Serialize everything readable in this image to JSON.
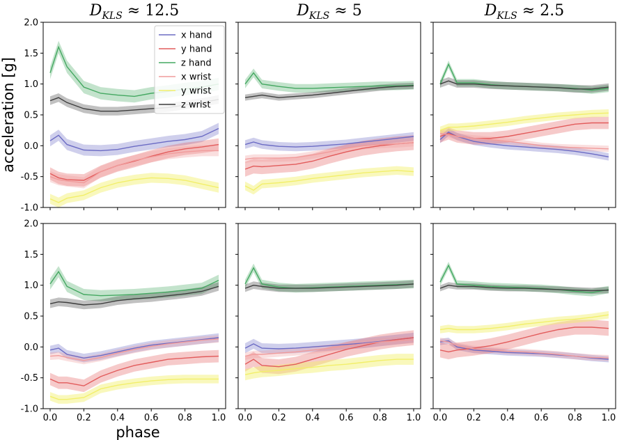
{
  "chart_data": {
    "type": "line",
    "layout": "2 rows x 3 columns of line panels with shaded variability bands",
    "xlabel": "phase",
    "ylabel": "acceleration [g]",
    "xlim": [
      0.0,
      1.0
    ],
    "ylim": [
      -1.0,
      2.0
    ],
    "xticks": [
      "0.0",
      "0.2",
      "0.4",
      "0.6",
      "0.8",
      "1.0"
    ],
    "yticks": [
      "-1.0",
      "-0.5",
      "0.0",
      "0.5",
      "1.0",
      "1.5",
      "2.0"
    ],
    "column_titles": [
      {
        "symbol": "D",
        "subscript": "KLS",
        "relation": "≈ 12.5"
      },
      {
        "symbol": "D",
        "subscript": "KLS",
        "relation": "≈ 5"
      },
      {
        "symbol": "D",
        "subscript": "KLS",
        "relation": "≈ 2.5"
      }
    ],
    "legend": [
      {
        "label": "x hand",
        "color": "#6b6bc4"
      },
      {
        "label": "y hand",
        "color": "#e25b5b"
      },
      {
        "label": "z hand",
        "color": "#44a861"
      },
      {
        "label": "x wrist",
        "color": "#f09b9b"
      },
      {
        "label": "y wrist",
        "color": "#f2ef6a"
      },
      {
        "label": "z wrist",
        "color": "#3d3d3d"
      }
    ],
    "x": [
      0.0,
      0.05,
      0.1,
      0.2,
      0.3,
      0.4,
      0.5,
      0.6,
      0.7,
      0.8,
      0.9,
      1.0
    ],
    "panels": [
      {
        "row": 0,
        "col": 0,
        "series": [
          {
            "name": "x hand",
            "values": [
              0.08,
              0.17,
              0.02,
              -0.07,
              -0.08,
              -0.06,
              -0.01,
              0.03,
              0.07,
              0.1,
              0.15,
              0.28
            ],
            "band": 0.09
          },
          {
            "name": "y hand",
            "values": [
              -0.45,
              -0.52,
              -0.55,
              -0.56,
              -0.42,
              -0.32,
              -0.25,
              -0.17,
              -0.1,
              -0.05,
              -0.02,
              0.02
            ],
            "band": 0.1
          },
          {
            "name": "z hand",
            "values": [
              1.18,
              1.6,
              1.28,
              0.95,
              0.85,
              0.82,
              0.8,
              0.85,
              0.88,
              0.92,
              0.95,
              1.0
            ],
            "band": 0.1
          },
          {
            "name": "x wrist",
            "values": [
              -0.5,
              -0.55,
              -0.57,
              -0.6,
              -0.42,
              -0.32,
              -0.24,
              -0.18,
              -0.13,
              -0.1,
              -0.08,
              -0.08
            ],
            "band": 0.09
          },
          {
            "name": "y wrist",
            "values": [
              -0.86,
              -0.92,
              -0.85,
              -0.8,
              -0.68,
              -0.6,
              -0.55,
              -0.52,
              -0.53,
              -0.56,
              -0.62,
              -0.68
            ],
            "band": 0.08
          },
          {
            "name": "z wrist",
            "values": [
              0.73,
              0.78,
              0.7,
              0.6,
              0.56,
              0.56,
              0.58,
              0.6,
              0.62,
              0.66,
              0.7,
              0.75
            ],
            "band": 0.07
          }
        ]
      },
      {
        "row": 0,
        "col": 1,
        "series": [
          {
            "name": "x hand",
            "values": [
              0.02,
              0.06,
              0.02,
              -0.01,
              -0.02,
              -0.01,
              0.01,
              0.03,
              0.06,
              0.09,
              0.12,
              0.15
            ],
            "band": 0.07
          },
          {
            "name": "y hand",
            "values": [
              -0.38,
              -0.33,
              -0.34,
              -0.32,
              -0.3,
              -0.25,
              -0.17,
              -0.1,
              -0.04,
              0.0,
              0.03,
              0.05
            ],
            "band": 0.12
          },
          {
            "name": "z hand",
            "values": [
              1.0,
              1.18,
              1.0,
              0.96,
              0.93,
              0.93,
              0.94,
              0.95,
              0.96,
              0.97,
              0.97,
              0.98
            ],
            "band": 0.07
          },
          {
            "name": "x wrist",
            "values": [
              -0.22,
              -0.2,
              -0.2,
              -0.2,
              -0.19,
              -0.15,
              -0.1,
              -0.04,
              0.0,
              0.02,
              0.03,
              0.05
            ],
            "band": 0.06
          },
          {
            "name": "y wrist",
            "values": [
              -0.65,
              -0.72,
              -0.62,
              -0.6,
              -0.57,
              -0.53,
              -0.5,
              -0.47,
              -0.44,
              -0.42,
              -0.4,
              -0.42
            ],
            "band": 0.07
          },
          {
            "name": "z wrist",
            "values": [
              0.78,
              0.8,
              0.82,
              0.78,
              0.8,
              0.82,
              0.85,
              0.88,
              0.91,
              0.94,
              0.96,
              0.97
            ],
            "band": 0.05
          }
        ]
      },
      {
        "row": 0,
        "col": 2,
        "series": [
          {
            "name": "x hand",
            "values": [
              0.1,
              0.22,
              0.15,
              0.07,
              0.03,
              0.0,
              -0.02,
              -0.04,
              -0.06,
              -0.09,
              -0.13,
              -0.18
            ],
            "band": 0.06
          },
          {
            "name": "y hand",
            "values": [
              0.15,
              0.2,
              0.15,
              0.12,
              0.12,
              0.15,
              0.2,
              0.25,
              0.3,
              0.35,
              0.37,
              0.37
            ],
            "band": 0.1
          },
          {
            "name": "z hand",
            "values": [
              1.0,
              1.32,
              1.02,
              1.02,
              0.99,
              0.97,
              0.96,
              0.95,
              0.94,
              0.93,
              0.9,
              0.93
            ],
            "band": 0.06
          },
          {
            "name": "x wrist",
            "values": [
              0.2,
              0.18,
              0.15,
              0.12,
              0.1,
              0.07,
              0.04,
              0.0,
              -0.02,
              -0.03,
              -0.04,
              -0.05
            ],
            "band": 0.05
          },
          {
            "name": "y wrist",
            "values": [
              0.25,
              0.3,
              0.3,
              0.32,
              0.35,
              0.38,
              0.42,
              0.45,
              0.48,
              0.5,
              0.52,
              0.53
            ],
            "band": 0.06
          },
          {
            "name": "z wrist",
            "values": [
              1.0,
              1.05,
              1.0,
              1.0,
              0.98,
              0.97,
              0.96,
              0.95,
              0.94,
              0.92,
              0.92,
              0.95
            ],
            "band": 0.06
          }
        ]
      },
      {
        "row": 1,
        "col": 0,
        "series": [
          {
            "name": "x hand",
            "values": [
              -0.05,
              -0.02,
              -0.12,
              -0.18,
              -0.14,
              -0.08,
              -0.02,
              0.03,
              0.06,
              0.09,
              0.12,
              0.15
            ],
            "band": 0.07
          },
          {
            "name": "y hand",
            "values": [
              -0.52,
              -0.58,
              -0.58,
              -0.63,
              -0.48,
              -0.38,
              -0.3,
              -0.25,
              -0.2,
              -0.18,
              -0.16,
              -0.15
            ],
            "band": 0.1
          },
          {
            "name": "z hand",
            "values": [
              1.02,
              1.22,
              0.98,
              0.85,
              0.83,
              0.84,
              0.85,
              0.87,
              0.89,
              0.92,
              0.95,
              1.08
            ],
            "band": 0.09
          },
          {
            "name": "x wrist",
            "values": [
              -0.15,
              -0.14,
              -0.17,
              -0.22,
              -0.17,
              -0.1,
              -0.04,
              0.01,
              0.05,
              0.08,
              0.11,
              0.13
            ],
            "band": 0.06
          },
          {
            "name": "y wrist",
            "values": [
              -0.8,
              -0.85,
              -0.85,
              -0.82,
              -0.68,
              -0.62,
              -0.58,
              -0.55,
              -0.53,
              -0.52,
              -0.52,
              -0.52
            ],
            "band": 0.07
          },
          {
            "name": "z wrist",
            "values": [
              0.7,
              0.73,
              0.72,
              0.68,
              0.7,
              0.75,
              0.78,
              0.8,
              0.83,
              0.86,
              0.9,
              0.98
            ],
            "band": 0.07
          }
        ]
      },
      {
        "row": 1,
        "col": 1,
        "series": [
          {
            "name": "x hand",
            "values": [
              -0.02,
              0.05,
              -0.02,
              -0.03,
              -0.02,
              0.0,
              0.02,
              0.04,
              0.06,
              0.09,
              0.12,
              0.15
            ],
            "band": 0.08
          },
          {
            "name": "y hand",
            "values": [
              -0.28,
              -0.2,
              -0.3,
              -0.32,
              -0.28,
              -0.2,
              -0.12,
              -0.04,
              0.02,
              0.08,
              0.12,
              0.15
            ],
            "band": 0.12
          },
          {
            "name": "z hand",
            "values": [
              1.02,
              1.28,
              1.02,
              0.97,
              0.95,
              0.96,
              0.97,
              0.98,
              0.99,
              1.0,
              1.01,
              1.02
            ],
            "band": 0.07
          },
          {
            "name": "x wrist",
            "values": [
              -0.15,
              -0.12,
              -0.12,
              -0.1,
              -0.08,
              -0.05,
              -0.02,
              0.02,
              0.05,
              0.08,
              0.1,
              0.12
            ],
            "band": 0.06
          },
          {
            "name": "y wrist",
            "values": [
              -0.45,
              -0.42,
              -0.4,
              -0.38,
              -0.35,
              -0.33,
              -0.3,
              -0.28,
              -0.25,
              -0.22,
              -0.2,
              -0.2
            ],
            "band": 0.09
          },
          {
            "name": "z wrist",
            "values": [
              0.95,
              1.0,
              0.98,
              0.95,
              0.95,
              0.95,
              0.96,
              0.97,
              0.98,
              0.99,
              1.0,
              1.02
            ],
            "band": 0.06
          }
        ]
      },
      {
        "row": 1,
        "col": 2,
        "series": [
          {
            "name": "x hand",
            "values": [
              0.08,
              0.1,
              0.0,
              -0.05,
              -0.07,
              -0.09,
              -0.1,
              -0.11,
              -0.13,
              -0.15,
              -0.18,
              -0.2
            ],
            "band": 0.05
          },
          {
            "name": "y hand",
            "values": [
              -0.05,
              -0.08,
              -0.05,
              -0.02,
              0.02,
              0.08,
              0.15,
              0.22,
              0.28,
              0.32,
              0.32,
              0.3
            ],
            "band": 0.12
          },
          {
            "name": "z hand",
            "values": [
              1.05,
              1.32,
              1.02,
              1.0,
              0.98,
              0.97,
              0.96,
              0.95,
              0.93,
              0.9,
              0.88,
              0.93
            ],
            "band": 0.06
          },
          {
            "name": "x wrist",
            "values": [
              0.1,
              0.08,
              0.02,
              -0.03,
              -0.05,
              -0.07,
              -0.08,
              -0.1,
              -0.12,
              -0.15,
              -0.17,
              -0.18
            ],
            "band": 0.05
          },
          {
            "name": "y wrist",
            "values": [
              0.28,
              0.3,
              0.28,
              0.28,
              0.3,
              0.33,
              0.37,
              0.4,
              0.43,
              0.45,
              0.48,
              0.52
            ],
            "band": 0.06
          },
          {
            "name": "z wrist",
            "values": [
              0.95,
              1.0,
              0.98,
              0.98,
              0.96,
              0.95,
              0.95,
              0.94,
              0.93,
              0.92,
              0.91,
              0.92
            ],
            "band": 0.05
          }
        ]
      }
    ]
  }
}
